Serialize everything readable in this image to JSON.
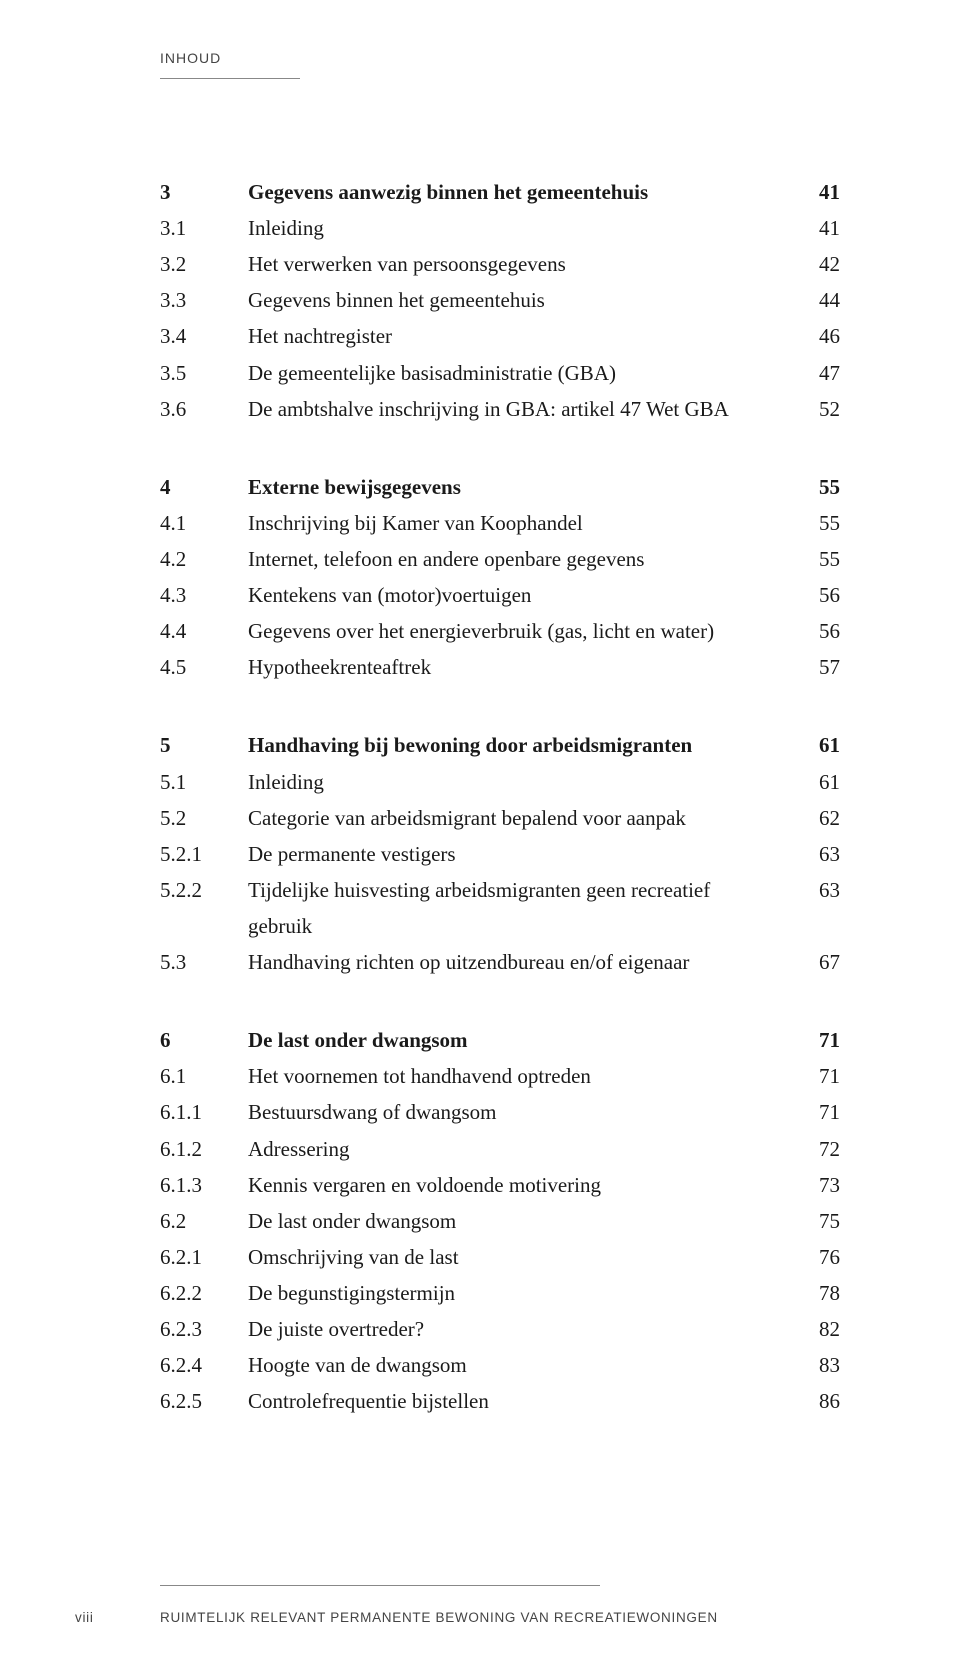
{
  "header": {
    "label": "INHOUD"
  },
  "footer": {
    "page_roman": "viii",
    "running_title": "RUIMTELIJK RELEVANT PERMANENTE BEWONING VAN RECREATIEWONINGEN"
  },
  "colors": {
    "text": "#1a1a1a",
    "rule": "#888888",
    "background": "#ffffff",
    "header_text": "#444444"
  },
  "typography": {
    "body_font": "Georgia serif",
    "header_font": "Arial sans-serif",
    "body_size_pt": 16,
    "header_size_pt": 10.5,
    "footer_size_pt": 10
  },
  "toc": {
    "sections": [
      {
        "rows": [
          {
            "num": "3",
            "title": "Gegevens aanwezig binnen het gemeentehuis",
            "page": "41",
            "bold": true
          },
          {
            "num": "3.1",
            "title": "Inleiding",
            "page": "41",
            "bold": false
          },
          {
            "num": "3.2",
            "title": "Het verwerken van persoonsgegevens",
            "page": "42",
            "bold": false
          },
          {
            "num": "3.3",
            "title": "Gegevens binnen het gemeentehuis",
            "page": "44",
            "bold": false
          },
          {
            "num": "3.4",
            "title": "Het nachtregister",
            "page": "46",
            "bold": false
          },
          {
            "num": "3.5",
            "title": "De gemeentelijke basisadministratie (GBA)",
            "page": "47",
            "bold": false
          },
          {
            "num": "3.6",
            "title": "De ambtshalve inschrijving in GBA: artikel 47 Wet GBA",
            "page": "52",
            "bold": false
          }
        ]
      },
      {
        "rows": [
          {
            "num": "4",
            "title": "Externe bewijsgegevens",
            "page": "55",
            "bold": true
          },
          {
            "num": "4.1",
            "title": "Inschrijving bij Kamer van Koophandel",
            "page": "55",
            "bold": false
          },
          {
            "num": "4.2",
            "title": "Internet, telefoon en andere openbare gegevens",
            "page": "55",
            "bold": false
          },
          {
            "num": "4.3",
            "title": "Kentekens van (motor)voertuigen",
            "page": "56",
            "bold": false
          },
          {
            "num": "4.4",
            "title": "Gegevens over het energieverbruik (gas, licht en water)",
            "page": "56",
            "bold": false
          },
          {
            "num": "4.5",
            "title": "Hypotheekrenteaftrek",
            "page": "57",
            "bold": false
          }
        ]
      },
      {
        "rows": [
          {
            "num": "5",
            "title": "Handhaving bij bewoning door arbeidsmigranten",
            "page": "61",
            "bold": true
          },
          {
            "num": "5.1",
            "title": "Inleiding",
            "page": "61",
            "bold": false
          },
          {
            "num": "5.2",
            "title": "Categorie van arbeidsmigrant bepalend voor aanpak",
            "page": "62",
            "bold": false
          },
          {
            "num": "5.2.1",
            "title": "De permanente vestigers",
            "page": "63",
            "bold": false
          },
          {
            "num": "5.2.2",
            "title": "Tijdelijke huisvesting arbeidsmigranten geen recreatief gebruik",
            "page": "63",
            "bold": false
          },
          {
            "num": "5.3",
            "title": "Handhaving richten op uitzendbureau en/of eigenaar",
            "page": "67",
            "bold": false
          }
        ]
      },
      {
        "rows": [
          {
            "num": "6",
            "title": "De last onder dwangsom",
            "page": "71",
            "bold": true
          },
          {
            "num": "6.1",
            "title": "Het voornemen tot handhavend optreden",
            "page": "71",
            "bold": false
          },
          {
            "num": "6.1.1",
            "title": "Bestuursdwang of dwangsom",
            "page": "71",
            "bold": false
          },
          {
            "num": "6.1.2",
            "title": "Adressering",
            "page": "72",
            "bold": false
          },
          {
            "num": "6.1.3",
            "title": "Kennis vergaren en voldoende motivering",
            "page": "73",
            "bold": false
          },
          {
            "num": "6.2",
            "title": "De last onder dwangsom",
            "page": "75",
            "bold": false
          },
          {
            "num": "6.2.1",
            "title": "Omschrijving van de last",
            "page": "76",
            "bold": false
          },
          {
            "num": "6.2.2",
            "title": "De begunstigingstermijn",
            "page": "78",
            "bold": false
          },
          {
            "num": "6.2.3",
            "title": "De juiste overtreder?",
            "page": "82",
            "bold": false
          },
          {
            "num": "6.2.4",
            "title": "Hoogte van de dwangsom",
            "page": "83",
            "bold": false
          },
          {
            "num": "6.2.5",
            "title": "Controlefrequentie bijstellen",
            "page": "86",
            "bold": false
          }
        ]
      }
    ]
  }
}
